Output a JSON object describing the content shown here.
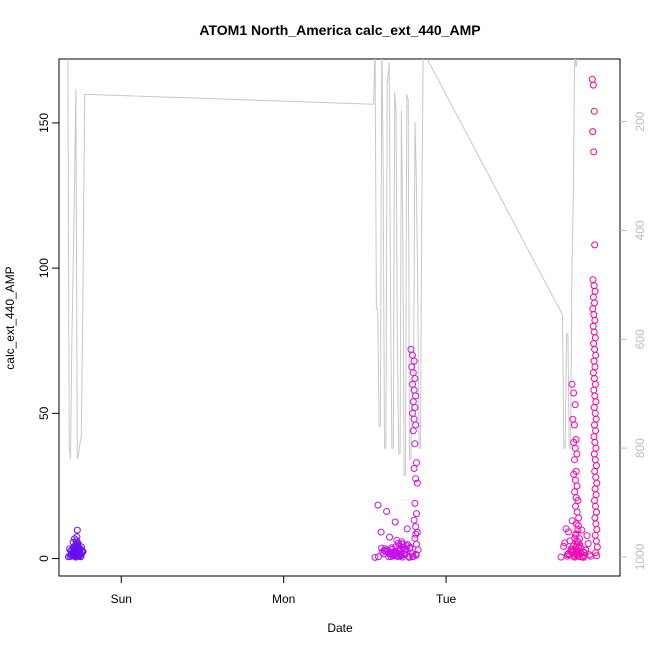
{
  "chart_data": {
    "type": "scatter",
    "title": "ATOM1 North_America calc_ext_440_AMP",
    "xlabel": "Date",
    "ylabel": "calc_ext_440_AMP",
    "x_ticks": [
      {
        "label": "Sun",
        "t": 0
      },
      {
        "label": "Mon",
        "t": 24
      },
      {
        "label": "Tue",
        "t": 48
      }
    ],
    "xlim_hours_from_sun": [
      -9.2,
      73.7
    ],
    "ylim": [
      -6.0,
      172.0
    ],
    "y_ticks": [
      0,
      50,
      100,
      150
    ],
    "y2_ticks": [
      200,
      400,
      600,
      800,
      1000
    ],
    "y2lim_reversed": [
      1035,
      85
    ],
    "color_ramp": [
      "#5a10f0",
      "#c010e6",
      "#ff00a0"
    ],
    "points_note": "ovals",
    "clusters": [
      {
        "t_start": -7.8,
        "t_end": -5.4,
        "color": "#6a0ff0",
        "values": [
          0.6,
          1.2,
          2.1,
          3.3,
          1.8,
          0.9,
          2.6,
          4.1,
          1.5,
          3.0,
          2.2,
          0.7,
          5.6,
          3.8,
          1.1,
          2.9,
          4.4,
          1.9,
          2.4,
          0.8,
          3.6,
          6.2,
          1.3,
          2.7,
          4.8,
          1.6,
          0.5,
          3.1,
          2.0,
          7.5,
          1.4,
          2.3,
          3.9,
          0.9,
          5.1,
          2.8,
          1.7,
          9.8,
          3.4,
          1.0,
          2.5,
          4.0,
          1.2,
          3.2,
          6.8,
          2.1,
          0.6,
          4.5,
          1.8,
          2.6,
          3.7,
          1.1,
          2.4,
          5.3,
          0.8,
          3.0,
          1.5,
          2.2,
          4.2,
          1.9
        ]
      },
      {
        "t_start": 37.5,
        "t_end": 44.2,
        "color": "#c512e8",
        "values": [
          0.4,
          1.6,
          3.2,
          18.4,
          16.2,
          12.6,
          9.1,
          7.4,
          5.3,
          2.8,
          1.1,
          0.6,
          2.4,
          4.1,
          3.6,
          1.9,
          0.8,
          2.7,
          1.3,
          5.8,
          3.0,
          0.9,
          2.2,
          1.5,
          4.6,
          3.4,
          1.0,
          0.5,
          2.0,
          6.3,
          1.4,
          0.7,
          3.1,
          2.5,
          1.2,
          4.0,
          0.6,
          1.8,
          2.9,
          3.7,
          1.1,
          0.8,
          2.3,
          5.0,
          1.6,
          0.9,
          3.3,
          2.1,
          1.3,
          0.4,
          2.6,
          3.8,
          1.7,
          0.7,
          4.4,
          2.0,
          1.0,
          3.5,
          1.5,
          2.8,
          0.6,
          1.9,
          10.2,
          8.4,
          5.1,
          3.9,
          2.2,
          1.4,
          0.8,
          2.5,
          4.8,
          1.1
        ]
      },
      {
        "t_start": 42.8,
        "t_end": 44.0,
        "color": "#d010e0",
        "values": [
          72.0,
          70.0,
          68.0,
          66.0,
          64.0,
          62.0,
          60.0,
          58.0,
          56.0,
          54.0,
          52.0,
          50.0,
          48.0,
          46.0,
          44.0,
          39.5,
          33.0,
          31.0,
          27.5,
          26.0,
          19.0,
          15.5,
          13.2,
          11.0,
          9.0,
          7.0,
          5.0,
          3.0,
          1.5
        ]
      },
      {
        "t_start": 65.0,
        "t_end": 69.8,
        "color": "#f30ab8",
        "values": [
          0.5,
          1.4,
          2.8,
          4.2,
          6.1,
          8.5,
          10.3,
          13.0,
          11.4,
          9.2,
          7.1,
          5.4,
          3.3,
          1.9,
          0.8,
          2.6,
          4.7,
          1.2,
          3.9,
          0.6,
          2.1,
          5.6,
          1.7,
          0.9,
          3.5,
          2.4,
          1.0,
          0.4,
          4.3,
          6.8,
          2.9,
          1.5,
          0.7,
          3.2,
          1.1,
          2.0,
          0.5,
          1.8,
          7.9,
          4.9,
          2.2,
          1.3,
          0.6,
          3.0,
          1.6,
          9.8,
          5.2,
          2.5,
          1.0,
          0.8
        ]
      },
      {
        "t_start": 66.6,
        "t_end": 67.8,
        "color": "#ff00b0",
        "values": [
          60.0,
          57.0,
          53.0,
          48.0,
          46.0,
          41.0,
          40.0,
          38.0,
          36.0,
          34.0,
          30.0,
          29.0,
          27.0,
          25.0,
          23.0,
          21.0,
          20.0,
          18.0,
          16.0,
          14.0,
          12.0,
          10.0,
          8.0,
          6.0,
          4.0,
          2.0
        ]
      },
      {
        "t_start": 69.6,
        "t_end": 70.4,
        "color": "#ff0090",
        "values": [
          165.0,
          163.0,
          154.0,
          147.0,
          140.0,
          108.0,
          96.0,
          94.0,
          92.0,
          90.0,
          88.0,
          86.0,
          84.0,
          82.0,
          80.0,
          78.0,
          76.0,
          74.0,
          72.0,
          70.0,
          68.0,
          66.0,
          64.0,
          62.0,
          60.0,
          58.0,
          56.0,
          54.0,
          52.0,
          50.0,
          48.0,
          46.0,
          44.0,
          42.0,
          40.0,
          38.0,
          36.0,
          34.0,
          32.0,
          30.0,
          28.0,
          26.0,
          24.0,
          22.0,
          20.0,
          18.0,
          16.0,
          14.0,
          12.0,
          10.0,
          8.0,
          6.0,
          4.0,
          2.0,
          1.0
        ]
      }
    ],
    "line_series": {
      "color": "#c8c8c8",
      "axis": "right",
      "points": [
        [
          -7.9,
          62
        ],
        [
          -7.7,
          800
        ],
        [
          -7.5,
          820
        ],
        [
          -7.3,
          600
        ],
        [
          -7.1,
          465
        ],
        [
          -6.9,
          310
        ],
        [
          -6.7,
          140
        ],
        [
          -6.5,
          820
        ],
        [
          -6.3,
          810
        ],
        [
          -6.1,
          790
        ],
        [
          -5.9,
          780
        ],
        [
          -5.7,
          560
        ],
        [
          -5.4,
          150
        ],
        [
          -5.3,
          150
        ],
        [
          -5.1,
          150
        ],
        [
          37.3,
          168
        ],
        [
          37.5,
          45
        ],
        [
          37.7,
          545
        ],
        [
          37.9,
          545
        ],
        [
          38.1,
          760
        ],
        [
          38.3,
          760
        ],
        [
          38.5,
          45
        ],
        [
          38.7,
          265
        ],
        [
          38.9,
          800
        ],
        [
          39.1,
          800
        ],
        [
          39.3,
          135
        ],
        [
          39.6,
          90
        ],
        [
          39.8,
          540
        ],
        [
          40.0,
          800
        ],
        [
          40.2,
          800
        ],
        [
          40.4,
          145
        ],
        [
          40.6,
          180
        ],
        [
          40.8,
          610
        ],
        [
          41.0,
          810
        ],
        [
          41.2,
          810
        ],
        [
          41.4,
          180
        ],
        [
          41.6,
          400
        ],
        [
          41.8,
          850
        ],
        [
          42.0,
          850
        ],
        [
          42.2,
          150
        ],
        [
          42.4,
          160
        ],
        [
          42.6,
          820
        ],
        [
          42.8,
          820
        ],
        [
          43.0,
          670
        ],
        [
          43.2,
          670
        ],
        [
          43.4,
          200
        ],
        [
          43.6,
          300
        ],
        [
          43.8,
          500
        ],
        [
          44.0,
          800
        ],
        [
          44.2,
          800
        ],
        [
          44.4,
          390
        ],
        [
          44.6,
          80
        ],
        [
          44.8,
          75
        ],
        [
          45.0,
          80
        ],
        [
          65.2,
          555
        ],
        [
          65.4,
          800
        ],
        [
          65.6,
          800
        ],
        [
          65.8,
          590
        ],
        [
          66.0,
          590
        ],
        [
          66.2,
          800
        ],
        [
          66.4,
          800
        ],
        [
          66.6,
          460
        ],
        [
          66.8,
          340
        ],
        [
          67.0,
          60
        ],
        [
          67.2,
          100
        ],
        [
          67.5,
          80
        ]
      ]
    }
  }
}
